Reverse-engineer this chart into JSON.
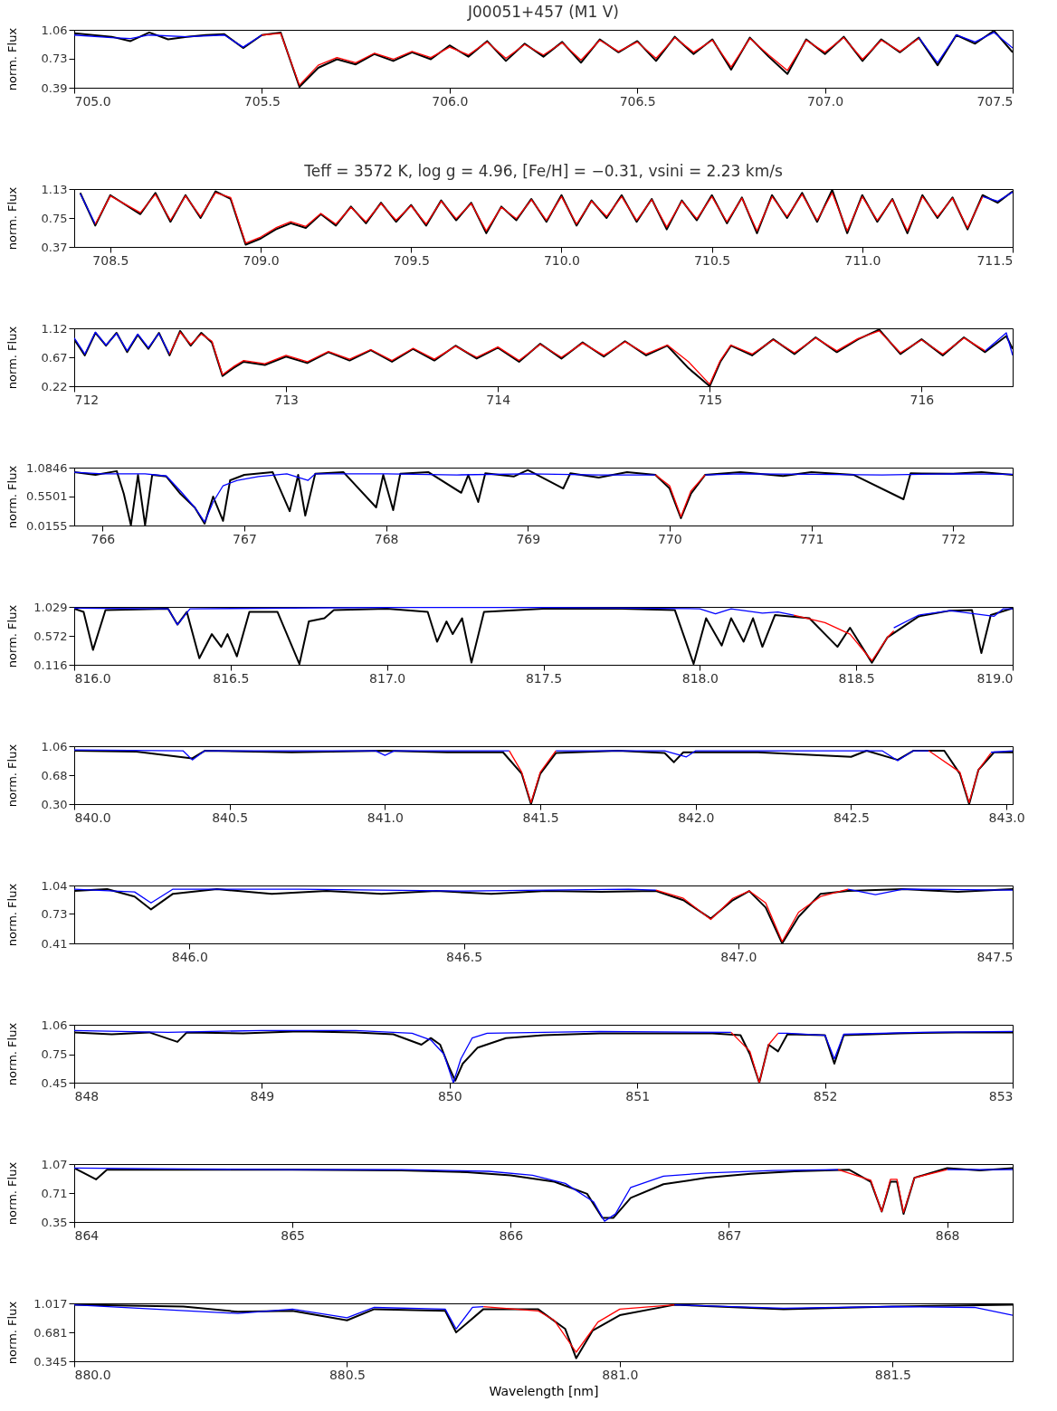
{
  "chart_data": [
    {
      "type": "line",
      "title": "J00051+457 (M1 V)",
      "ylabel": "norm. Flux",
      "xlim": [
        705.0,
        707.5
      ],
      "xticks": [
        {
          "value": 705,
          "label": "705.0"
        },
        705.5,
        {
          "value": 706,
          "label": "706.0"
        },
        706.5,
        {
          "value": 707,
          "label": "707.0"
        },
        707.5
      ],
      "ylim": [
        0.39,
        1.06
      ],
      "yticks": [
        0.39,
        0.73,
        1.06
      ],
      "series": [
        {
          "color": "#0000ff",
          "x": [
            705.0,
            705.1,
            705.15,
            705.2,
            705.3,
            705.4,
            705.45,
            705.5,
            706.0,
            707.25,
            707.3,
            707.35,
            707.4,
            707.45,
            707.5
          ],
          "values": [
            1.0,
            0.97,
            0.96,
            1.0,
            0.98,
            1.0,
            0.86,
            1.0,
            null,
            0.97,
            0.68,
            1.0,
            0.92,
            1.03,
            0.85
          ]
        },
        {
          "color": "#000000",
          "x": [
            705.0,
            705.05,
            705.1,
            705.15,
            705.2,
            705.25,
            705.3,
            705.35,
            705.4,
            705.45,
            705.5,
            705.55,
            705.6,
            705.65,
            705.7,
            705.75,
            705.8,
            705.85,
            705.9,
            705.95,
            706.0,
            706.05,
            706.1,
            706.15,
            706.2,
            706.25,
            706.3,
            706.35,
            706.4,
            706.45,
            706.5,
            706.55,
            706.6,
            706.65,
            706.7,
            706.75,
            706.8,
            706.85,
            706.9,
            706.95,
            707.0,
            707.05,
            707.1,
            707.15,
            707.2,
            707.25,
            707.3,
            707.35,
            707.4,
            707.45,
            707.5
          ],
          "values": [
            1.02,
            1.0,
            0.98,
            0.93,
            1.03,
            0.95,
            0.98,
            1.0,
            1.01,
            0.85,
            1.0,
            1.03,
            0.4,
            0.62,
            0.72,
            0.66,
            0.78,
            0.7,
            0.8,
            0.72,
            0.88,
            0.75,
            0.93,
            0.7,
            0.9,
            0.75,
            0.92,
            0.68,
            0.95,
            0.8,
            0.93,
            0.7,
            0.98,
            0.78,
            0.95,
            0.6,
            0.97,
            0.75,
            0.55,
            0.95,
            0.78,
            0.98,
            0.7,
            0.95,
            0.8,
            0.97,
            0.65,
            1.0,
            0.9,
            1.05,
            0.8
          ]
        },
        {
          "color": "#ff0000",
          "x": [
            705.5,
            705.55,
            705.6,
            705.65,
            705.7,
            705.75,
            705.8,
            705.85,
            705.9,
            705.95,
            706.0,
            706.05,
            706.1,
            706.15,
            706.2,
            706.25,
            706.3,
            706.35,
            706.4,
            706.45,
            706.5,
            706.55,
            706.6,
            706.65,
            706.7,
            706.75,
            706.8,
            706.85,
            706.9,
            706.95,
            707.0,
            707.05,
            707.1,
            707.15,
            707.2,
            707.25
          ],
          "values": [
            1.0,
            1.02,
            0.42,
            0.65,
            0.74,
            0.68,
            0.79,
            0.72,
            0.81,
            0.74,
            0.86,
            0.77,
            0.92,
            0.73,
            0.89,
            0.77,
            0.91,
            0.71,
            0.94,
            0.81,
            0.92,
            0.73,
            0.97,
            0.8,
            0.94,
            0.63,
            0.96,
            0.77,
            0.59,
            0.94,
            0.8,
            0.97,
            0.72,
            0.94,
            0.81,
            0.96
          ]
        }
      ]
    },
    {
      "type": "line",
      "title": "Teff = 3572 K, log g = 4.96, [Fe/H] = −0.31, vsini = 2.23 km/s",
      "ylabel": "norm. Flux",
      "xlim": [
        708.38,
        711.5
      ],
      "xticks": [
        708.5,
        {
          "value": 709,
          "label": "709.0"
        },
        709.5,
        {
          "value": 710,
          "label": "710.0"
        },
        710.5,
        {
          "value": 711,
          "label": "711.0"
        },
        711.5
      ],
      "ylim": [
        0.37,
        1.13
      ],
      "yticks": [
        0.37,
        0.75,
        1.13
      ],
      "series": [
        {
          "color": "#0000ff",
          "x": [
            708.4,
            708.45,
            710.0,
            711.4,
            711.45,
            711.5
          ],
          "values": [
            1.07,
            0.67,
            null,
            1.03,
            0.97,
            1.09
          ]
        },
        {
          "color": "#000000",
          "x": [
            708.4,
            708.45,
            708.5,
            708.6,
            708.65,
            708.7,
            708.75,
            708.8,
            708.85,
            708.9,
            708.95,
            709.0,
            709.05,
            709.1,
            709.15,
            709.2,
            709.25,
            709.3,
            709.35,
            709.4,
            709.45,
            709.5,
            709.55,
            709.6,
            709.65,
            709.7,
            709.75,
            709.8,
            709.85,
            709.9,
            709.95,
            710.0,
            710.05,
            710.1,
            710.15,
            710.2,
            710.25,
            710.3,
            710.35,
            710.4,
            710.45,
            710.5,
            710.55,
            710.6,
            710.65,
            710.7,
            710.75,
            710.8,
            710.85,
            710.9,
            710.95,
            711.0,
            711.05,
            711.1,
            711.15,
            711.2,
            711.25,
            711.3,
            711.35,
            711.4,
            711.45,
            711.5
          ],
          "values": [
            1.08,
            0.65,
            1.05,
            0.8,
            1.08,
            0.7,
            1.05,
            0.75,
            1.1,
            1.0,
            0.4,
            0.48,
            0.6,
            0.68,
            0.62,
            0.8,
            0.65,
            0.9,
            0.68,
            0.95,
            0.7,
            0.92,
            0.65,
            0.98,
            0.72,
            0.95,
            0.55,
            0.9,
            0.72,
            1.0,
            0.7,
            1.05,
            0.65,
            0.98,
            0.75,
            1.05,
            0.7,
            1.0,
            0.6,
            0.98,
            0.72,
            1.05,
            0.68,
            1.02,
            0.55,
            1.05,
            0.75,
            1.08,
            0.7,
            1.12,
            0.55,
            1.05,
            0.7,
            1.0,
            0.55,
            1.05,
            0.75,
            1.02,
            0.6,
            1.05,
            0.95,
            1.1
          ]
        },
        {
          "color": "#ff0000",
          "x": [
            708.45,
            708.5,
            708.6,
            708.65,
            708.7,
            708.75,
            708.8,
            708.85,
            708.9,
            708.95,
            709.0,
            709.05,
            709.1,
            709.15,
            709.2,
            709.25,
            709.3,
            709.35,
            709.4,
            709.45,
            709.5,
            709.55,
            709.6,
            709.65,
            709.7,
            709.75,
            709.8,
            709.85,
            709.9,
            709.95,
            710.0,
            710.05,
            710.1,
            710.15,
            710.2,
            710.25,
            710.3,
            710.35,
            710.4,
            710.45,
            710.5,
            710.55,
            710.6,
            710.65,
            710.7,
            710.75,
            710.8,
            710.85,
            710.9,
            710.95,
            711.0,
            711.05,
            711.1,
            711.15,
            711.2,
            711.25,
            711.3,
            711.35,
            711.4
          ],
          "values": [
            0.67,
            1.04,
            0.82,
            1.06,
            0.72,
            1.04,
            0.77,
            1.08,
            1.02,
            0.42,
            0.5,
            0.62,
            0.7,
            0.64,
            0.81,
            0.67,
            0.89,
            0.7,
            0.94,
            0.72,
            0.91,
            0.67,
            0.97,
            0.74,
            0.94,
            0.58,
            0.89,
            0.74,
            0.99,
            0.72,
            1.03,
            0.67,
            0.97,
            0.77,
            1.03,
            0.72,
            0.99,
            0.63,
            0.97,
            0.74,
            1.03,
            0.7,
            1.01,
            0.58,
            1.03,
            0.77,
            1.06,
            0.72,
            1.08,
            0.58,
            1.03,
            0.72,
            0.99,
            0.58,
            1.03,
            0.77,
            1.01,
            0.62,
            1.03
          ]
        }
      ]
    },
    {
      "type": "line",
      "ylabel": "norm. Flux",
      "xlim": [
        712,
        716.43
      ],
      "xticks": [
        712,
        713,
        714,
        715,
        716
      ],
      "ylim": [
        0.22,
        1.12
      ],
      "yticks": [
        0.22,
        0.67,
        1.12
      ],
      "series": [
        {
          "color": "#0000ff",
          "x": [
            712.0,
            712.05,
            712.1,
            712.15,
            712.2,
            712.25,
            712.3,
            712.35,
            712.4,
            712.45,
            714.0,
            716.3,
            716.4,
            716.43
          ],
          "values": [
            0.97,
            0.72,
            1.06,
            0.86,
            1.04,
            0.77,
            1.03,
            0.82,
            1.04,
            0.72,
            null,
            0.77,
            1.05,
            0.7
          ]
        },
        {
          "color": "#000000",
          "x": [
            712.0,
            712.05,
            712.1,
            712.15,
            712.2,
            712.25,
            712.3,
            712.35,
            712.4,
            712.45,
            712.5,
            712.55,
            712.6,
            712.65,
            712.7,
            712.75,
            712.8,
            712.9,
            713.0,
            713.1,
            713.2,
            713.3,
            713.4,
            713.5,
            713.6,
            713.7,
            713.8,
            713.9,
            714.0,
            714.1,
            714.2,
            714.3,
            714.4,
            714.5,
            714.6,
            714.7,
            714.8,
            714.9,
            715.0,
            715.05,
            715.1,
            715.2,
            715.3,
            715.4,
            715.5,
            715.6,
            715.7,
            715.8,
            715.9,
            716.0,
            716.1,
            716.2,
            716.3,
            716.4,
            716.43
          ],
          "values": [
            0.95,
            0.7,
            1.05,
            0.85,
            1.05,
            0.75,
            1.02,
            0.8,
            1.05,
            0.7,
            1.08,
            0.85,
            1.05,
            0.9,
            0.38,
            0.5,
            0.6,
            0.55,
            0.68,
            0.58,
            0.75,
            0.62,
            0.78,
            0.6,
            0.8,
            0.62,
            0.85,
            0.65,
            0.82,
            0.6,
            0.88,
            0.65,
            0.9,
            0.68,
            0.92,
            0.7,
            0.85,
            0.5,
            0.22,
            0.6,
            0.85,
            0.7,
            0.95,
            0.72,
            0.98,
            0.75,
            0.95,
            1.1,
            0.72,
            0.95,
            0.7,
            0.98,
            0.75,
            1.0,
            0.8
          ]
        },
        {
          "color": "#ff0000",
          "x": [
            712.45,
            712.5,
            712.55,
            712.6,
            712.65,
            712.7,
            712.75,
            712.8,
            712.9,
            713.0,
            713.1,
            713.2,
            713.3,
            713.4,
            713.5,
            713.6,
            713.7,
            713.8,
            713.9,
            714.0,
            714.1,
            714.2,
            714.3,
            714.4,
            714.5,
            714.6,
            714.7,
            714.8,
            714.9,
            715.0,
            715.05,
            715.1,
            715.2,
            715.3,
            715.4,
            715.5,
            715.6,
            715.7,
            715.8,
            715.9,
            716.0,
            716.1,
            716.2,
            716.3
          ],
          "values": [
            0.72,
            1.06,
            0.87,
            1.03,
            0.92,
            0.4,
            0.52,
            0.62,
            0.57,
            0.7,
            0.6,
            0.76,
            0.64,
            0.79,
            0.62,
            0.81,
            0.64,
            0.84,
            0.67,
            0.83,
            0.62,
            0.87,
            0.67,
            0.89,
            0.7,
            0.91,
            0.72,
            0.86,
            0.6,
            0.25,
            0.62,
            0.86,
            0.72,
            0.94,
            0.74,
            0.97,
            0.77,
            0.96,
            1.08,
            0.74,
            0.94,
            0.72,
            0.97,
            0.77
          ]
        }
      ]
    },
    {
      "type": "line",
      "ylabel": "norm. Flux",
      "xlim": [
        765.8,
        772.42
      ],
      "xticks": [
        766,
        767,
        768,
        769,
        770,
        771,
        772
      ],
      "ylim": [
        0.0155,
        1.0846
      ],
      "yticks": [
        0.0155,
        0.5501,
        1.0846
      ],
      "series": [
        {
          "color": "#0000ff",
          "x": [
            765.8,
            766.0,
            766.3,
            766.45,
            766.55,
            766.65,
            766.72,
            766.78,
            766.85,
            766.95,
            767.1,
            767.3,
            767.45,
            767.5,
            768.0,
            768.5,
            769.0,
            769.5,
            769.9,
            770.0,
            770.25,
            770.5,
            771.0,
            771.5,
            772.0,
            772.42
          ],
          "values": [
            1.0,
            0.97,
            0.97,
            0.93,
            0.65,
            0.35,
            0.08,
            0.45,
            0.75,
            0.85,
            0.92,
            0.97,
            0.85,
            0.97,
            0.97,
            0.95,
            0.97,
            0.95,
            0.95,
            null,
            0.95,
            0.97,
            0.96,
            0.95,
            0.97,
            0.96
          ]
        },
        {
          "color": "#000000",
          "x": [
            765.8,
            765.95,
            766.1,
            766.15,
            766.2,
            766.25,
            766.3,
            766.35,
            766.45,
            766.55,
            766.65,
            766.72,
            766.78,
            766.85,
            766.9,
            767.0,
            767.2,
            767.32,
            767.38,
            767.43,
            767.5,
            767.7,
            767.93,
            767.98,
            768.05,
            768.1,
            768.3,
            768.53,
            768.58,
            768.65,
            768.7,
            768.9,
            769.0,
            769.25,
            769.3,
            769.5,
            769.7,
            769.9,
            770.0,
            770.08,
            770.15,
            770.25,
            770.5,
            770.8,
            771.0,
            771.3,
            771.65,
            771.7,
            772.0,
            772.2,
            772.42
          ],
          "values": [
            1.0,
            0.95,
            1.02,
            0.6,
            0.02,
            0.95,
            0.02,
            0.95,
            0.92,
            0.6,
            0.35,
            0.05,
            0.55,
            0.1,
            0.85,
            0.95,
            1.0,
            0.28,
            0.95,
            0.2,
            0.97,
            1.0,
            0.35,
            0.95,
            0.3,
            0.97,
            1.0,
            0.62,
            0.95,
            0.45,
            0.98,
            0.92,
            1.04,
            0.7,
            0.98,
            0.9,
            1.0,
            0.95,
            0.7,
            0.15,
            0.6,
            0.95,
            1.0,
            0.93,
            1.0,
            0.95,
            0.5,
            0.98,
            0.97,
            1.0,
            0.95
          ]
        },
        {
          "color": "#ff0000",
          "x": [
            769.9,
            770.0,
            770.08,
            770.15,
            770.25
          ],
          "values": [
            0.95,
            0.75,
            0.18,
            0.65,
            0.95
          ]
        }
      ]
    },
    {
      "type": "line",
      "ylabel": "norm. Flux",
      "xlim": [
        816.0,
        819.0
      ],
      "xticks": [
        {
          "value": 816,
          "label": "816.0"
        },
        816.5,
        {
          "value": 817,
          "label": "817.0"
        },
        817.5,
        {
          "value": 818,
          "label": "818.0"
        },
        818.5,
        {
          "value": 819,
          "label": "819.0"
        }
      ],
      "ylim": [
        0.116,
        1.029
      ],
      "yticks": [
        0.116,
        0.572,
        1.029
      ],
      "series": [
        {
          "color": "#0000ff",
          "x": [
            816.0,
            816.3,
            816.33,
            816.37,
            817.0,
            817.5,
            818.0,
            818.05,
            818.1,
            818.2,
            818.25,
            818.3,
            818.45,
            818.62,
            818.7,
            818.8,
            818.94,
            818.97,
            819.0
          ],
          "values": [
            1.01,
            1.0,
            0.75,
            1.0,
            1.02,
            1.02,
            1.0,
            0.92,
            1.0,
            0.93,
            0.95,
            0.9,
            null,
            0.7,
            0.9,
            0.97,
            0.88,
            1.0,
            1.0
          ]
        },
        {
          "color": "#000000",
          "x": [
            816.0,
            816.03,
            816.06,
            816.1,
            816.3,
            816.33,
            816.36,
            816.4,
            816.44,
            816.47,
            816.49,
            816.52,
            816.56,
            816.65,
            816.72,
            816.75,
            816.8,
            816.83,
            817.0,
            817.13,
            817.16,
            817.19,
            817.21,
            817.24,
            817.27,
            817.31,
            817.5,
            817.75,
            817.92,
            817.98,
            818.02,
            818.07,
            818.1,
            818.14,
            818.17,
            818.2,
            818.24,
            818.35,
            818.44,
            818.48,
            818.55,
            818.6,
            818.7,
            818.8,
            818.87,
            818.9,
            818.93,
            819.0
          ],
          "values": [
            1.0,
            0.95,
            0.35,
            0.98,
            1.0,
            0.75,
            0.95,
            0.22,
            0.6,
            0.4,
            0.6,
            0.25,
            0.95,
            0.95,
            0.13,
            0.8,
            0.85,
            0.98,
            1.0,
            0.95,
            0.48,
            0.8,
            0.6,
            0.85,
            0.15,
            0.95,
            1.0,
            1.0,
            0.98,
            0.13,
            0.85,
            0.42,
            0.85,
            0.48,
            0.85,
            0.4,
            0.9,
            0.85,
            0.4,
            0.7,
            0.15,
            0.55,
            0.88,
            0.97,
            0.98,
            0.3,
            0.9,
            1.01
          ]
        },
        {
          "color": "#ff0000",
          "x": [
            818.3,
            818.4,
            818.48,
            818.55,
            818.6,
            818.62
          ],
          "values": [
            0.9,
            0.78,
            0.6,
            0.18,
            0.55,
            0.65
          ]
        }
      ]
    },
    {
      "type": "line",
      "ylabel": "norm. Flux",
      "xlim": [
        840.0,
        843.02
      ],
      "xticks": [
        {
          "value": 840,
          "label": "840.0"
        },
        840.5,
        {
          "value": 841,
          "label": "841.0"
        },
        841.5,
        {
          "value": 842,
          "label": "842.0"
        },
        842.5,
        {
          "value": 843,
          "label": "843.0"
        }
      ],
      "ylim": [
        0.3,
        1.06
      ],
      "yticks": [
        {
          "value": 0.3,
          "label": "0.30"
        },
        0.68,
        1.06
      ],
      "series": [
        {
          "color": "#0000ff",
          "x": [
            840.0,
            840.35,
            840.38,
            840.42,
            840.97,
            841.0,
            841.03,
            841.4,
            841.47,
            841.55,
            841.9,
            841.97,
            842.0,
            842.6,
            842.65,
            842.7,
            842.75,
            842.85,
            842.95,
            843.02
          ],
          "values": [
            1.01,
            1.0,
            0.88,
            1.0,
            1.0,
            0.94,
            1.0,
            1.0,
            null,
            1.0,
            1.0,
            0.92,
            1.0,
            1.0,
            0.87,
            1.0,
            1.0,
            null,
            0.98,
            1.0
          ]
        },
        {
          "color": "#000000",
          "x": [
            840.0,
            840.2,
            840.38,
            840.42,
            840.7,
            841.0,
            841.2,
            841.38,
            841.44,
            841.47,
            841.5,
            841.55,
            841.75,
            841.9,
            841.93,
            841.96,
            842.2,
            842.5,
            842.55,
            842.65,
            842.7,
            842.8,
            842.85,
            842.88,
            842.91,
            842.96,
            843.02
          ],
          "values": [
            1.0,
            0.99,
            0.9,
            1.0,
            0.98,
            1.0,
            0.98,
            0.98,
            0.7,
            0.3,
            0.7,
            0.97,
            1.0,
            0.97,
            0.85,
            0.98,
            0.98,
            0.92,
            1.0,
            0.88,
            1.0,
            1.0,
            0.7,
            0.3,
            0.75,
            0.98,
            0.98
          ]
        },
        {
          "color": "#ff0000",
          "x": [
            841.4,
            841.44,
            841.47,
            841.5,
            841.55,
            842.2,
            842.75,
            842.85,
            842.88,
            842.91,
            842.95
          ],
          "values": [
            1.0,
            0.72,
            0.32,
            0.72,
            1.0,
            null,
            1.0,
            0.72,
            0.32,
            0.75,
            0.97
          ]
        }
      ]
    },
    {
      "type": "line",
      "ylabel": "norm. Flux",
      "xlim": [
        845.79,
        847.5
      ],
      "xticks": [
        {
          "value": 846,
          "label": "846.0"
        },
        846.5,
        {
          "value": 847,
          "label": "847.0"
        },
        847.5
      ],
      "ylim": [
        0.41,
        1.04
      ],
      "yticks": [
        0.41,
        0.73,
        1.04
      ],
      "series": [
        {
          "color": "#0000ff",
          "x": [
            845.79,
            845.9,
            845.93,
            845.97,
            846.2,
            846.5,
            846.8,
            846.85,
            847.0,
            847.2,
            847.25,
            847.3,
            847.5
          ],
          "values": [
            1.0,
            0.97,
            0.85,
            1.0,
            1.0,
            0.98,
            1.0,
            0.99,
            null,
            1.0,
            0.94,
            1.0,
            0.99
          ]
        },
        {
          "color": "#000000",
          "x": [
            845.79,
            845.85,
            845.9,
            845.93,
            845.97,
            846.05,
            846.15,
            846.25,
            846.35,
            846.45,
            846.55,
            846.65,
            846.75,
            846.85,
            846.9,
            846.95,
            846.99,
            847.02,
            847.05,
            847.08,
            847.11,
            847.15,
            847.2,
            847.3,
            847.4,
            847.5
          ],
          "values": [
            0.98,
            1.0,
            0.92,
            0.78,
            0.95,
            1.0,
            0.95,
            0.98,
            0.95,
            0.98,
            0.95,
            0.98,
            0.97,
            0.98,
            0.88,
            0.68,
            0.88,
            0.98,
            0.8,
            0.41,
            0.7,
            0.95,
            0.98,
            1.0,
            0.97,
            1.0
          ]
        },
        {
          "color": "#ff0000",
          "x": [
            846.85,
            846.9,
            846.95,
            846.99,
            847.02,
            847.05,
            847.08,
            847.11,
            847.15,
            847.2
          ],
          "values": [
            0.99,
            0.9,
            0.67,
            0.9,
            0.98,
            0.85,
            0.43,
            0.75,
            0.92,
            1.0
          ]
        }
      ]
    },
    {
      "type": "line",
      "ylabel": "norm. Flux",
      "xlim": [
        848,
        853
      ],
      "xticks": [
        848,
        849,
        850,
        851,
        852,
        853
      ],
      "ylim": [
        0.45,
        1.06
      ],
      "yticks": [
        0.45,
        0.75,
        1.06
      ],
      "series": [
        {
          "color": "#0000ff",
          "x": [
            848.0,
            848.5,
            849.0,
            849.5,
            849.8,
            849.9,
            849.97,
            850.02,
            850.06,
            850.12,
            850.2,
            850.8,
            851.5,
            851.6,
            851.75,
            851.8,
            852.0,
            852.05,
            852.1,
            852.5,
            853.0
          ],
          "values": [
            1.0,
            0.98,
            1.0,
            1.0,
            0.97,
            0.9,
            0.75,
            0.45,
            0.7,
            0.92,
            0.97,
            0.99,
            0.98,
            null,
            0.97,
            0.97,
            0.95,
            0.7,
            0.96,
            0.98,
            0.99
          ]
        },
        {
          "color": "#000000",
          "x": [
            848.0,
            848.2,
            848.4,
            848.55,
            848.6,
            848.9,
            849.2,
            849.5,
            849.7,
            849.85,
            849.9,
            849.95,
            850.0,
            850.03,
            850.07,
            850.15,
            850.3,
            850.5,
            850.8,
            851.1,
            851.4,
            851.55,
            851.6,
            851.65,
            851.7,
            851.75,
            851.8,
            852.0,
            852.05,
            852.1,
            852.4,
            852.7,
            853.0
          ],
          "values": [
            0.98,
            0.96,
            0.98,
            0.88,
            0.98,
            0.97,
            0.99,
            0.98,
            0.96,
            0.85,
            0.92,
            0.85,
            0.6,
            0.47,
            0.65,
            0.82,
            0.92,
            0.95,
            0.97,
            0.97,
            0.97,
            0.95,
            0.75,
            0.45,
            0.85,
            0.78,
            0.96,
            0.95,
            0.65,
            0.95,
            0.97,
            0.98,
            0.98
          ]
        },
        {
          "color": "#ff0000",
          "x": [
            851.5,
            851.6,
            851.65,
            851.7,
            851.75
          ],
          "values": [
            0.98,
            0.78,
            0.45,
            0.85,
            0.97
          ]
        }
      ]
    },
    {
      "type": "line",
      "ylabel": "norm. Flux",
      "xlim": [
        864,
        868.3
      ],
      "xticks": [
        864,
        865,
        866,
        867,
        868
      ],
      "ylim": [
        0.35,
        1.07
      ],
      "yticks": [
        0.35,
        0.71,
        1.07
      ],
      "series": [
        {
          "color": "#0000ff",
          "x": [
            864.0,
            864.5,
            865.0,
            865.5,
            865.9,
            866.1,
            866.25,
            866.38,
            866.43,
            866.48,
            866.55,
            866.7,
            866.9,
            867.2,
            867.5,
            867.7,
            868.0,
            868.3
          ],
          "values": [
            1.02,
            1.01,
            1.0,
            1.0,
            0.98,
            0.93,
            0.83,
            0.6,
            0.36,
            0.45,
            0.78,
            0.92,
            0.96,
            0.99,
            1.0,
            null,
            1.0,
            1.0
          ]
        },
        {
          "color": "#000000",
          "x": [
            864.0,
            864.1,
            864.15,
            864.5,
            865.0,
            865.5,
            865.8,
            866.0,
            866.2,
            866.35,
            866.42,
            866.47,
            866.55,
            866.7,
            866.9,
            867.1,
            867.3,
            867.55,
            867.65,
            867.7,
            867.74,
            867.77,
            867.8,
            867.85,
            868.0,
            868.15,
            868.3
          ],
          "values": [
            1.02,
            0.88,
            1.0,
            1.0,
            1.0,
            0.99,
            0.97,
            0.93,
            0.85,
            0.7,
            0.4,
            0.4,
            0.65,
            0.82,
            0.9,
            0.95,
            0.98,
            1.0,
            0.85,
            0.48,
            0.85,
            0.85,
            0.45,
            0.9,
            1.02,
            0.99,
            1.02
          ]
        },
        {
          "color": "#ff0000",
          "x": [
            867.5,
            867.65,
            867.7,
            867.74,
            867.77,
            867.8,
            867.85,
            868.0
          ],
          "values": [
            1.0,
            0.87,
            0.48,
            0.88,
            0.88,
            0.47,
            0.9,
            1.0
          ]
        }
      ]
    },
    {
      "type": "line",
      "ylabel": "norm. Flux",
      "xlabel": "Wavelength [nm]",
      "xlim": [
        880.0,
        881.72
      ],
      "xticks": [
        {
          "value": 880,
          "label": "880.0"
        },
        880.5,
        {
          "value": 881,
          "label": "881.0"
        },
        881.5
      ],
      "ylim": [
        0.345,
        1.017
      ],
      "yticks": [
        0.345,
        0.681,
        1.017
      ],
      "series": [
        {
          "color": "#0000ff",
          "x": [
            880.0,
            880.3,
            880.4,
            880.5,
            880.55,
            880.68,
            880.7,
            880.73,
            880.75,
            880.9,
            881.1,
            881.3,
            881.5,
            881.65,
            881.72
          ],
          "values": [
            1.0,
            0.9,
            0.95,
            0.85,
            0.97,
            0.95,
            0.72,
            0.97,
            0.98,
            null,
            1.0,
            0.96,
            0.98,
            0.97,
            0.88
          ]
        },
        {
          "color": "#000000",
          "x": [
            880.0,
            880.2,
            880.3,
            880.4,
            880.5,
            880.55,
            880.68,
            880.7,
            880.75,
            880.85,
            880.9,
            880.92,
            880.95,
            881.0,
            881.1,
            881.3,
            881.5,
            881.72
          ],
          "values": [
            1.0,
            0.98,
            0.92,
            0.93,
            0.82,
            0.95,
            0.93,
            0.68,
            0.95,
            0.95,
            0.72,
            0.38,
            0.7,
            0.88,
            1.0,
            0.95,
            0.98,
            1.0
          ]
        },
        {
          "color": "#ff0000",
          "x": [
            880.75,
            880.85,
            880.88,
            880.92,
            880.96,
            881.0,
            881.1
          ],
          "values": [
            0.98,
            0.93,
            0.82,
            0.45,
            0.8,
            0.95,
            1.0
          ]
        }
      ]
    }
  ]
}
